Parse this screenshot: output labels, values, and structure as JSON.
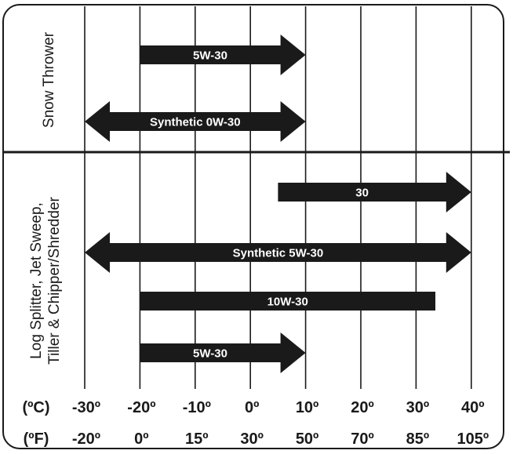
{
  "chart_data": {
    "type": "range-diagram",
    "units": {
      "celsius": "(ºC)",
      "fahrenheit": "(ºF)"
    },
    "celsius_ticks": [
      "-30º",
      "-20º",
      "-10º",
      "0º",
      "10º",
      "20º",
      "30º",
      "40º"
    ],
    "fahrenheit_ticks": [
      "-20º",
      "0º",
      "15º",
      "30º",
      "50º",
      "70º",
      "85º",
      "105º"
    ],
    "axis_range_c": [
      -30,
      40
    ],
    "grid": true,
    "sections": [
      {
        "label": "Snow Thrower",
        "bars": [
          {
            "label": "5W-30",
            "from_c": -20,
            "to_c": 10,
            "arrow_left": false,
            "arrow_right": true
          },
          {
            "label": "Synthetic 0W-30",
            "from_c": -30,
            "to_c": 10,
            "arrow_left": true,
            "arrow_right": true
          }
        ]
      },
      {
        "label": [
          "Log Splitter, Jet Sweep,",
          "Tiller & Chipper/Shredder"
        ],
        "bars": [
          {
            "label": "30",
            "from_c": 5,
            "to_c": 40,
            "arrow_left": false,
            "arrow_right": true
          },
          {
            "label": "Synthetic 5W-30",
            "from_c": -30,
            "to_c": 40,
            "arrow_left": true,
            "arrow_right": true
          },
          {
            "label": "10W-30",
            "from_c": -20,
            "to_c": 33.5,
            "arrow_left": false,
            "arrow_right": false
          },
          {
            "label": "5W-30",
            "from_c": -20,
            "to_c": 10,
            "arrow_left": false,
            "arrow_right": true
          }
        ]
      }
    ]
  },
  "colors": {
    "ink": "#1a1a1a",
    "bar": "#1a1a1a",
    "bar_text": "#ffffff",
    "grid": "#1a1a1a"
  }
}
